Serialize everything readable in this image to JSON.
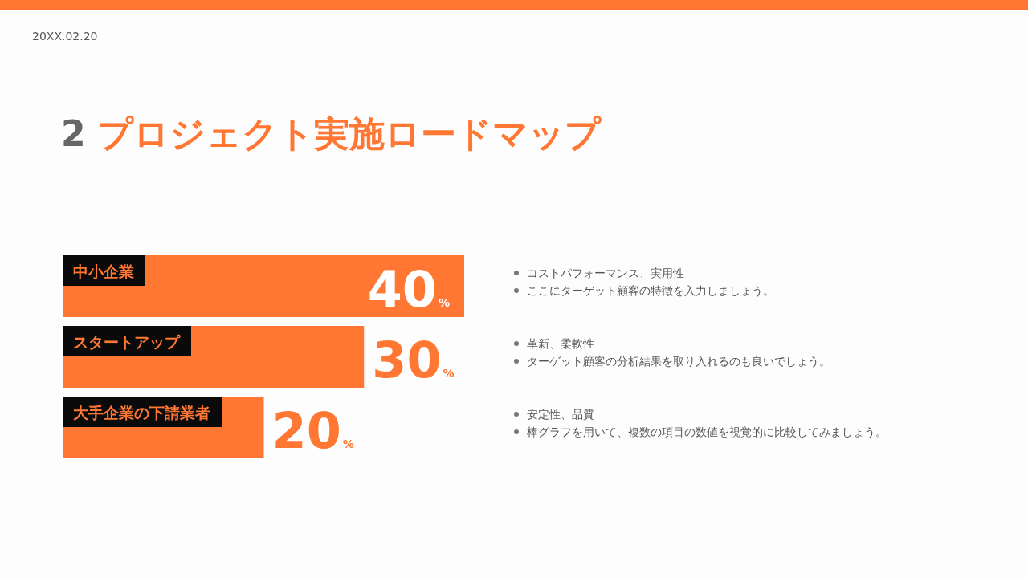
{
  "chart_data": {
    "type": "bar",
    "orientation": "horizontal",
    "title": "2 プロジェクト実施ロードマップ",
    "categories": [
      "中小企業",
      "スタートアップ",
      "大手企業の下請業者"
    ],
    "values": [
      40,
      30,
      20
    ],
    "value_labels": [
      "40%",
      "30%",
      "20%"
    ],
    "color": "#ff7733",
    "annotations": [
      "20XX.02.20",
      "コストパフォーマンス、実用性",
      "ここにターゲット顧客の特徴を入力しましょう。",
      "革新、柔軟性",
      "ターゲット顧客の分析結果を取り入れるのも良いでしょう。",
      "安定性、品質",
      "棒グラフを用いて、複数の項目の数値を視覚的に比較してみましょう。"
    ]
  }
}
